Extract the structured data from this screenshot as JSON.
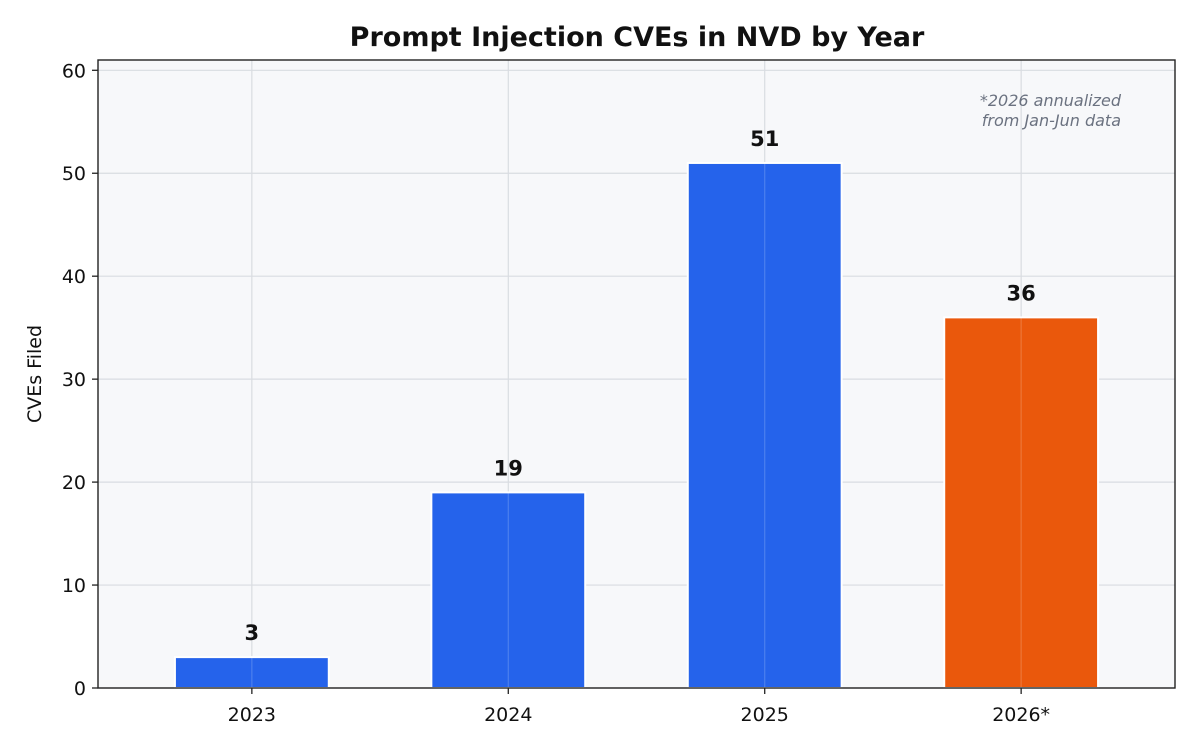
{
  "chart_data": {
    "type": "bar",
    "title": "Prompt Injection CVEs in NVD by Year",
    "xlabel": "",
    "ylabel": "CVEs Filed",
    "categories": [
      "2023",
      "2024",
      "2025",
      "2026*"
    ],
    "values": [
      3,
      19,
      51,
      36
    ],
    "data_labels": [
      "3",
      "19",
      "51",
      "36"
    ],
    "bar_colors": [
      "#2563eb",
      "#2563eb",
      "#2563eb",
      "#ea580c"
    ],
    "ylim": [
      0,
      61
    ],
    "yticks": [
      0,
      10,
      20,
      30,
      40,
      50,
      60
    ],
    "ytick_labels": [
      "0",
      "10",
      "20",
      "30",
      "40",
      "50",
      "60"
    ],
    "grid": true,
    "annotation": [
      "*2026 annualized",
      "from Jan-Jun data"
    ],
    "plot_background": "#f7f8fa"
  }
}
